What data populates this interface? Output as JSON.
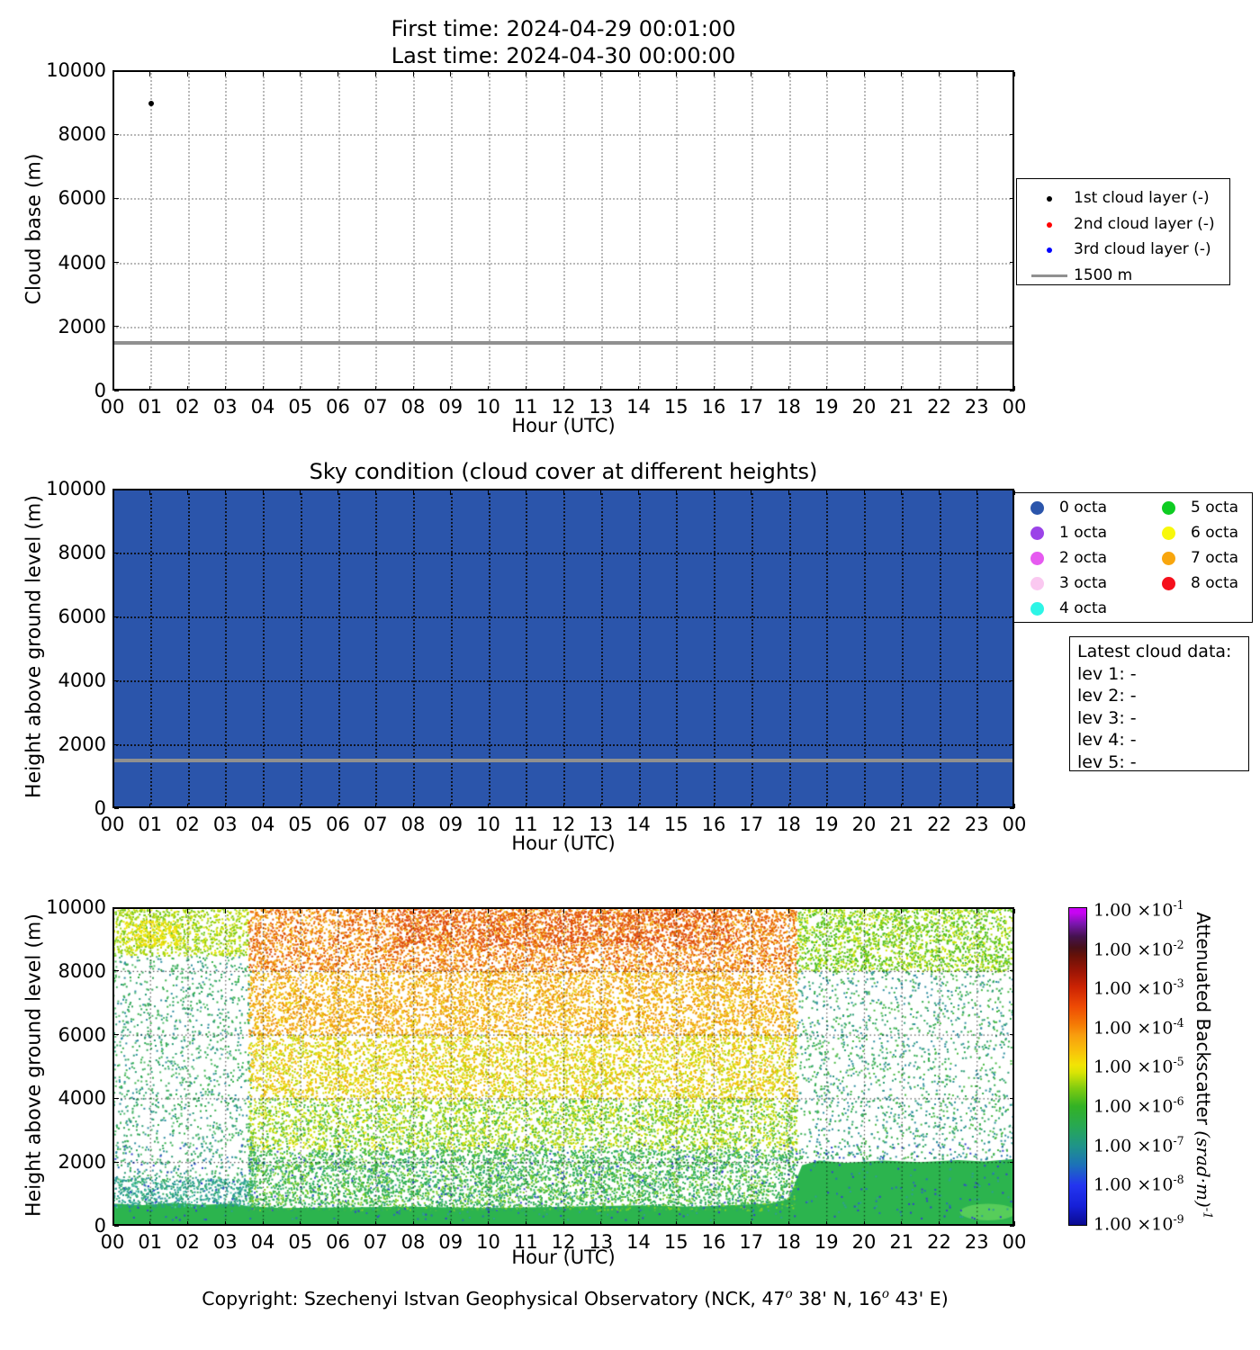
{
  "figure": {
    "title_line1": "First time: 2024-04-29 00:01:00",
    "title_line2": "Last time: 2024-04-30 00:00:00",
    "footer_parts": [
      {
        "text": "Copyright: Szechenyi Istvan Geophysical Observatory (NCK, 47"
      },
      {
        "sup": "o"
      },
      {
        "text": " 38' N, 16"
      },
      {
        "sup": "o"
      },
      {
        "text": " 43' E)"
      }
    ]
  },
  "axes": {
    "xlabel": "Hour (UTC)",
    "hour_ticks": [
      "00",
      "01",
      "02",
      "03",
      "04",
      "05",
      "06",
      "07",
      "08",
      "09",
      "10",
      "11",
      "12",
      "13",
      "14",
      "15",
      "16",
      "17",
      "18",
      "19",
      "20",
      "21",
      "22",
      "23",
      "00"
    ],
    "height_ticks": [
      "0",
      "2000",
      "4000",
      "6000",
      "8000",
      "10000"
    ]
  },
  "panel1": {
    "ylabel": "Cloud base (m)",
    "legend_items": [
      {
        "marker": "dot",
        "color": "#000000",
        "label": "1st cloud layer (-)"
      },
      {
        "marker": "dot",
        "color": "#ff0000",
        "label": "2nd cloud layer (-)"
      },
      {
        "marker": "dot",
        "color": "#0000ff",
        "label": "3rd cloud layer (-)"
      },
      {
        "marker": "line",
        "color": "#909090",
        "label": "1500 m"
      }
    ]
  },
  "panel2": {
    "title": "Sky condition (cloud cover at different heights)",
    "ylabel": "Height above ground level (m)",
    "octa_legend": [
      {
        "label": "0 octa",
        "color": "#2b55ab"
      },
      {
        "label": "1 octa",
        "color": "#9b43e8"
      },
      {
        "label": "2 octa",
        "color": "#e65af0"
      },
      {
        "label": "3 octa",
        "color": "#fac8f0"
      },
      {
        "label": "4 octa",
        "color": "#2df5e6"
      },
      {
        "label": "5 octa",
        "color": "#0ecc22"
      },
      {
        "label": "6 octa",
        "color": "#f8f80c"
      },
      {
        "label": "7 octa",
        "color": "#f8a60e"
      },
      {
        "label": "8 octa",
        "color": "#f5101c"
      }
    ],
    "info_box": {
      "title": "Latest cloud data:",
      "lines": [
        "lev 1: -",
        "lev 2: -",
        "lev 3: -",
        "lev 4: -",
        "lev 5: -"
      ]
    }
  },
  "panel3": {
    "ylabel": "Height above ground level (m)",
    "colorbar": {
      "title_text": "Attenuated Backscatter ",
      "title_math": "(srad·m)",
      "title_math_exp": "-1",
      "tick_mantissa": "1.00 ×10",
      "tick_exponents": [
        "-1",
        "-2",
        "-3",
        "-4",
        "-5",
        "-6",
        "-7",
        "-8",
        "-9"
      ]
    }
  },
  "chart_data": [
    {
      "type": "scatter",
      "panel": "cloud-base",
      "title": "First time: 2024-04-29 00:01:00 / Last time: 2024-04-30 00:00:00",
      "xlabel": "Hour (UTC)",
      "ylabel": "Cloud base (m)",
      "xlim_hours": [
        0,
        24
      ],
      "ylim_m": [
        0,
        10000
      ],
      "grid": true,
      "legend_position": "right-outside",
      "series": [
        {
          "name": "1st cloud layer (-)",
          "color": "#000000",
          "points": [
            {
              "hour": 1.03,
              "cloud_base_m": 8950
            }
          ]
        },
        {
          "name": "2nd cloud layer (-)",
          "color": "#ff0000",
          "points": []
        },
        {
          "name": "3rd cloud layer (-)",
          "color": "#0000ff",
          "points": []
        }
      ],
      "reference_line": {
        "label": "1500 m",
        "value_m": 1500,
        "color": "#909090"
      }
    },
    {
      "type": "heatmap",
      "panel": "sky-condition",
      "title": "Sky condition (cloud cover at different heights)",
      "xlabel": "Hour (UTC)",
      "ylabel": "Height above ground level (m)",
      "xlim_hours": [
        0,
        24
      ],
      "ylim_m": [
        0,
        10000
      ],
      "uniform_value": "0 octa",
      "fill_color": "#2b55ab",
      "reference_line": {
        "label": "1500 m",
        "value_m": 1500,
        "color": "#909090"
      }
    },
    {
      "type": "scatter",
      "panel": "attenuated-backscatter",
      "xlabel": "Hour (UTC)",
      "ylabel": "Height above ground level (m)",
      "xlim_hours": [
        0,
        24
      ],
      "ylim_m": [
        0,
        10000
      ],
      "colorbar_range": [
        "1.00e-9",
        "1.00e-1"
      ],
      "colorbar_stops": [
        {
          "pos": 0.0,
          "color": "#0a0a90"
        },
        {
          "pos": 0.06,
          "color": "#1620d8"
        },
        {
          "pos": 0.125,
          "color": "#2335f0"
        },
        {
          "pos": 0.19,
          "color": "#1c72b8"
        },
        {
          "pos": 0.25,
          "color": "#1f9488"
        },
        {
          "pos": 0.31,
          "color": "#27a854"
        },
        {
          "pos": 0.375,
          "color": "#33b224"
        },
        {
          "pos": 0.43,
          "color": "#7ecb10"
        },
        {
          "pos": 0.48,
          "color": "#d8e405"
        },
        {
          "pos": 0.505,
          "color": "#f2e405"
        },
        {
          "pos": 0.545,
          "color": "#f8c40a"
        },
        {
          "pos": 0.6,
          "color": "#f89c0e"
        },
        {
          "pos": 0.63,
          "color": "#f57d05"
        },
        {
          "pos": 0.69,
          "color": "#ee4a04"
        },
        {
          "pos": 0.75,
          "color": "#cc2303"
        },
        {
          "pos": 0.8,
          "color": "#9c1505"
        },
        {
          "pos": 0.85,
          "color": "#671108"
        },
        {
          "pos": 0.875,
          "color": "#481018"
        },
        {
          "pos": 0.91,
          "color": "#44124e"
        },
        {
          "pos": 0.95,
          "color": "#7916ad"
        },
        {
          "pos": 0.985,
          "color": "#c705f2"
        },
        {
          "pos": 1.0,
          "color": "#ca00f8"
        }
      ],
      "base_band": {
        "color": "#2cb44e",
        "points_hour_m": [
          [
            0,
            700
          ],
          [
            0.8,
            650
          ],
          [
            1.6,
            720
          ],
          [
            2.4,
            660
          ],
          [
            3.2,
            700
          ],
          [
            3.6,
            620
          ],
          [
            4.5,
            560
          ],
          [
            6,
            580
          ],
          [
            8,
            600
          ],
          [
            10,
            560
          ],
          [
            12,
            600
          ],
          [
            14,
            640
          ],
          [
            15.5,
            600
          ],
          [
            16.5,
            650
          ],
          [
            17.5,
            700
          ],
          [
            18.0,
            850
          ],
          [
            18.35,
            1900
          ],
          [
            18.8,
            2050
          ],
          [
            19.5,
            1980
          ],
          [
            20.5,
            2050
          ],
          [
            21.5,
            2000
          ],
          [
            22.5,
            2060
          ],
          [
            23.2,
            2020
          ],
          [
            24,
            2100
          ]
        ]
      },
      "bright_patch": {
        "hour": 23.3,
        "height_m": 430,
        "rx_hours": 0.75,
        "ry_m": 260,
        "color": "#5ccf5c"
      },
      "speckle_regions": [
        {
          "hour_start": 0,
          "hour_end": 3.6,
          "m_low": 8500,
          "m_high": 10000,
          "density": 0.5,
          "colors": [
            "#c6de08",
            "#a6d40e",
            "#e2e606",
            "#6cc61c",
            "#8fce14"
          ]
        },
        {
          "hour_start": 0.3,
          "hour_end": 1.8,
          "m_low": 8800,
          "m_high": 9600,
          "density": 0.45,
          "colors": [
            "#f2e705",
            "#e8e309",
            "#f5d908"
          ]
        },
        {
          "hour_start": 0,
          "hour_end": 3.7,
          "m_low": 1400,
          "m_high": 8500,
          "density": 0.14,
          "colors": [
            "#35a85c",
            "#2f9e78",
            "#3bb24e",
            "#57bd70",
            "#2f8fa0"
          ]
        },
        {
          "hour_start": 0,
          "hour_end": 3.7,
          "m_low": 600,
          "m_high": 1500,
          "density": 0.55,
          "colors": [
            "#27988e",
            "#2aa37e",
            "#35ad64",
            "#52c4a8",
            "#2d9a96"
          ]
        },
        {
          "hour_start": 3.6,
          "hour_end": 18.2,
          "m_low": 8000,
          "m_high": 10000,
          "density": 0.55,
          "colors": [
            "#f0820c",
            "#e86008",
            "#f2a210",
            "#dd4d04",
            "#f5ba14",
            "#e87310"
          ]
        },
        {
          "hour_start": 7.5,
          "hour_end": 16.5,
          "m_low": 8800,
          "m_high": 10000,
          "density": 0.3,
          "colors": [
            "#e0501a",
            "#d84010",
            "#e86008"
          ]
        },
        {
          "hour_start": 3.6,
          "hour_end": 18.2,
          "m_low": 6000,
          "m_high": 8000,
          "density": 0.52,
          "colors": [
            "#f5a90c",
            "#f0bb0a",
            "#eb8e0c",
            "#e8cf08",
            "#f0980e"
          ]
        },
        {
          "hour_start": 3.6,
          "hour_end": 18.2,
          "m_low": 4000,
          "m_high": 6000,
          "density": 0.5,
          "colors": [
            "#ecd906",
            "#f2c30a",
            "#ccdc08",
            "#f0b110",
            "#abd40c"
          ]
        },
        {
          "hour_start": 3.6,
          "hour_end": 18.2,
          "m_low": 2400,
          "m_high": 4000,
          "density": 0.48,
          "colors": [
            "#bcda0a",
            "#90ce12",
            "#e2e206",
            "#5cc232",
            "#3eb846"
          ]
        },
        {
          "hour_start": 3.6,
          "hour_end": 18.2,
          "m_low": 500,
          "m_high": 2400,
          "density": 0.52,
          "colors": [
            "#38b44c",
            "#4cbe44",
            "#2eae58",
            "#84d028",
            "#2aa86a"
          ]
        },
        {
          "hour_start": 18.2,
          "hour_end": 24,
          "m_low": 8000,
          "m_high": 10000,
          "density": 0.5,
          "colors": [
            "#68c812",
            "#a8d80a",
            "#46bd2a",
            "#d2e406",
            "#57c020"
          ]
        },
        {
          "hour_start": 18.2,
          "hour_end": 24,
          "m_low": 2100,
          "m_high": 8000,
          "density": 0.13,
          "colors": [
            "#36ad52",
            "#2f9e78",
            "#4cba46",
            "#2f8fa0"
          ]
        },
        {
          "hour_start": 0,
          "hour_end": 24,
          "m_low": 200,
          "m_high": 2600,
          "density": 0.03,
          "colors": [
            "#2a6fb8",
            "#2f9e96",
            "#3344cc"
          ]
        }
      ]
    }
  ]
}
